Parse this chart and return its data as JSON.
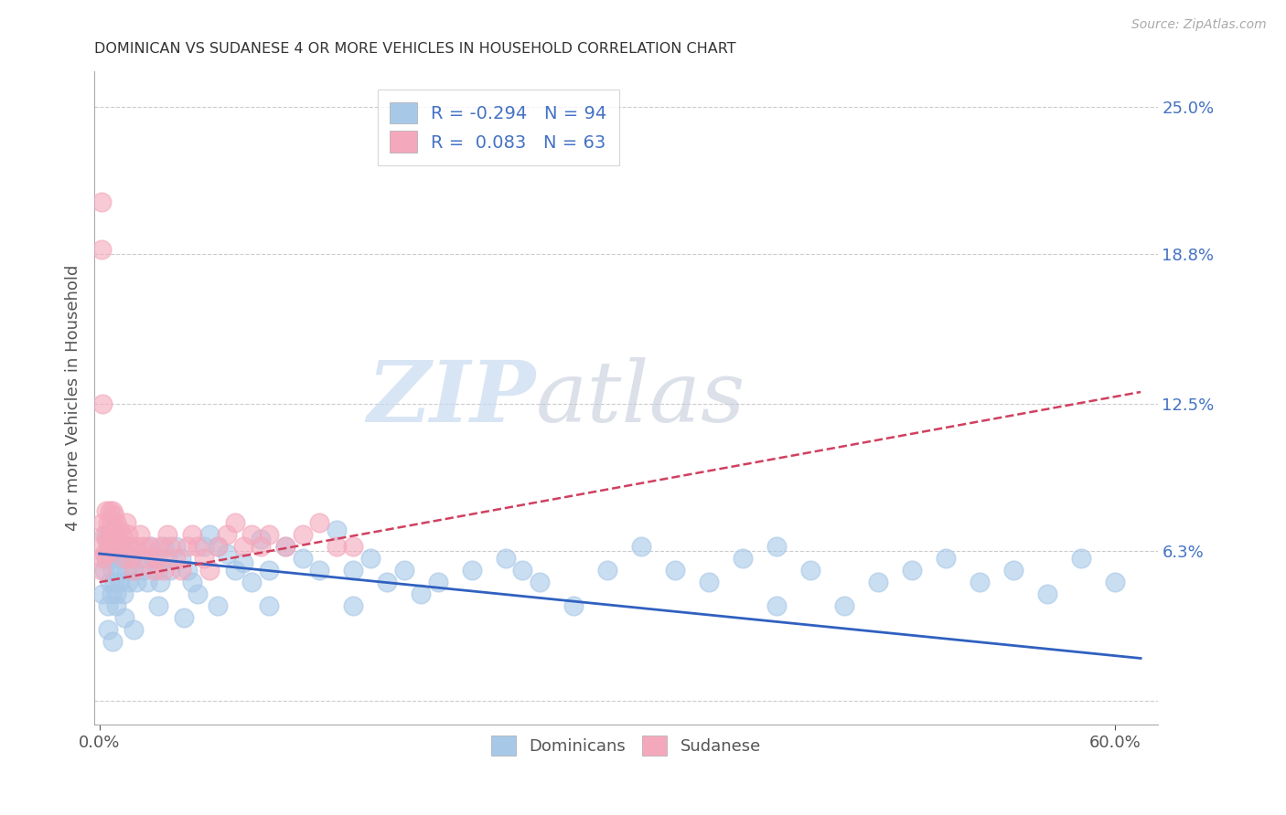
{
  "title": "DOMINICAN VS SUDANESE 4 OR MORE VEHICLES IN HOUSEHOLD CORRELATION CHART",
  "source": "Source: ZipAtlas.com",
  "ylabel_label": "4 or more Vehicles in Household",
  "xmin": -0.003,
  "xmax": 0.625,
  "ymin": -0.01,
  "ymax": 0.265,
  "dominican_color": "#a8c8e8",
  "sudanese_color": "#f4a8bc",
  "dominican_line_color": "#3060c0",
  "sudanese_line_color": "#d04060",
  "R_dominican": -0.294,
  "N_dominican": 94,
  "R_sudanese": 0.083,
  "N_sudanese": 63,
  "watermark_zip": "ZIP",
  "watermark_atlas": "atlas",
  "ytick_positions": [
    0.0,
    0.063,
    0.125,
    0.188,
    0.25
  ],
  "dom_line_x0": 0.0,
  "dom_line_y0": 0.062,
  "dom_line_x1": 0.615,
  "dom_line_y1": 0.018,
  "sud_line_x0": 0.0,
  "sud_line_y0": 0.05,
  "sud_line_x1": 0.615,
  "sud_line_y1": 0.13,
  "dominican_points_x": [
    0.002,
    0.003,
    0.004,
    0.004,
    0.005,
    0.005,
    0.006,
    0.006,
    0.007,
    0.007,
    0.008,
    0.008,
    0.009,
    0.009,
    0.01,
    0.01,
    0.011,
    0.012,
    0.012,
    0.013,
    0.014,
    0.015,
    0.016,
    0.017,
    0.018,
    0.019,
    0.02,
    0.022,
    0.024,
    0.026,
    0.028,
    0.03,
    0.032,
    0.034,
    0.036,
    0.038,
    0.04,
    0.042,
    0.045,
    0.048,
    0.052,
    0.055,
    0.058,
    0.062,
    0.065,
    0.07,
    0.075,
    0.08,
    0.085,
    0.09,
    0.095,
    0.1,
    0.11,
    0.12,
    0.13,
    0.14,
    0.15,
    0.16,
    0.17,
    0.18,
    0.19,
    0.2,
    0.22,
    0.24,
    0.26,
    0.28,
    0.3,
    0.32,
    0.34,
    0.36,
    0.38,
    0.4,
    0.42,
    0.44,
    0.46,
    0.48,
    0.5,
    0.52,
    0.54,
    0.56,
    0.58,
    0.6,
    0.005,
    0.008,
    0.01,
    0.015,
    0.02,
    0.035,
    0.05,
    0.07,
    0.1,
    0.15,
    0.25,
    0.4
  ],
  "dominican_points_y": [
    0.045,
    0.055,
    0.06,
    0.07,
    0.04,
    0.065,
    0.05,
    0.07,
    0.045,
    0.06,
    0.055,
    0.07,
    0.05,
    0.065,
    0.045,
    0.06,
    0.055,
    0.05,
    0.065,
    0.06,
    0.045,
    0.06,
    0.055,
    0.05,
    0.065,
    0.06,
    0.055,
    0.05,
    0.06,
    0.055,
    0.05,
    0.065,
    0.06,
    0.055,
    0.05,
    0.065,
    0.06,
    0.055,
    0.065,
    0.06,
    0.055,
    0.05,
    0.045,
    0.065,
    0.07,
    0.065,
    0.062,
    0.055,
    0.058,
    0.05,
    0.068,
    0.055,
    0.065,
    0.06,
    0.055,
    0.072,
    0.055,
    0.06,
    0.05,
    0.055,
    0.045,
    0.05,
    0.055,
    0.06,
    0.05,
    0.04,
    0.055,
    0.065,
    0.055,
    0.05,
    0.06,
    0.065,
    0.055,
    0.04,
    0.05,
    0.055,
    0.06,
    0.05,
    0.055,
    0.045,
    0.06,
    0.05,
    0.03,
    0.025,
    0.04,
    0.035,
    0.03,
    0.04,
    0.035,
    0.04,
    0.04,
    0.04,
    0.055,
    0.04
  ],
  "sudanese_points_x": [
    0.001,
    0.001,
    0.002,
    0.002,
    0.003,
    0.003,
    0.004,
    0.004,
    0.005,
    0.005,
    0.006,
    0.006,
    0.007,
    0.007,
    0.008,
    0.008,
    0.009,
    0.009,
    0.01,
    0.01,
    0.011,
    0.012,
    0.013,
    0.014,
    0.015,
    0.016,
    0.017,
    0.018,
    0.019,
    0.02,
    0.022,
    0.024,
    0.026,
    0.028,
    0.03,
    0.032,
    0.034,
    0.036,
    0.038,
    0.04,
    0.042,
    0.045,
    0.048,
    0.052,
    0.055,
    0.058,
    0.062,
    0.065,
    0.07,
    0.075,
    0.08,
    0.085,
    0.09,
    0.095,
    0.1,
    0.11,
    0.12,
    0.13,
    0.14,
    0.15,
    0.001,
    0.001,
    0.002
  ],
  "sudanese_points_y": [
    0.055,
    0.065,
    0.06,
    0.075,
    0.062,
    0.07,
    0.068,
    0.08,
    0.062,
    0.075,
    0.07,
    0.08,
    0.068,
    0.075,
    0.065,
    0.08,
    0.07,
    0.078,
    0.065,
    0.075,
    0.068,
    0.072,
    0.07,
    0.065,
    0.06,
    0.075,
    0.07,
    0.065,
    0.06,
    0.055,
    0.065,
    0.07,
    0.065,
    0.06,
    0.065,
    0.055,
    0.06,
    0.065,
    0.055,
    0.07,
    0.065,
    0.06,
    0.055,
    0.065,
    0.07,
    0.065,
    0.06,
    0.055,
    0.065,
    0.07,
    0.075,
    0.065,
    0.07,
    0.065,
    0.07,
    0.065,
    0.07,
    0.075,
    0.065,
    0.065,
    0.21,
    0.19,
    0.125
  ]
}
